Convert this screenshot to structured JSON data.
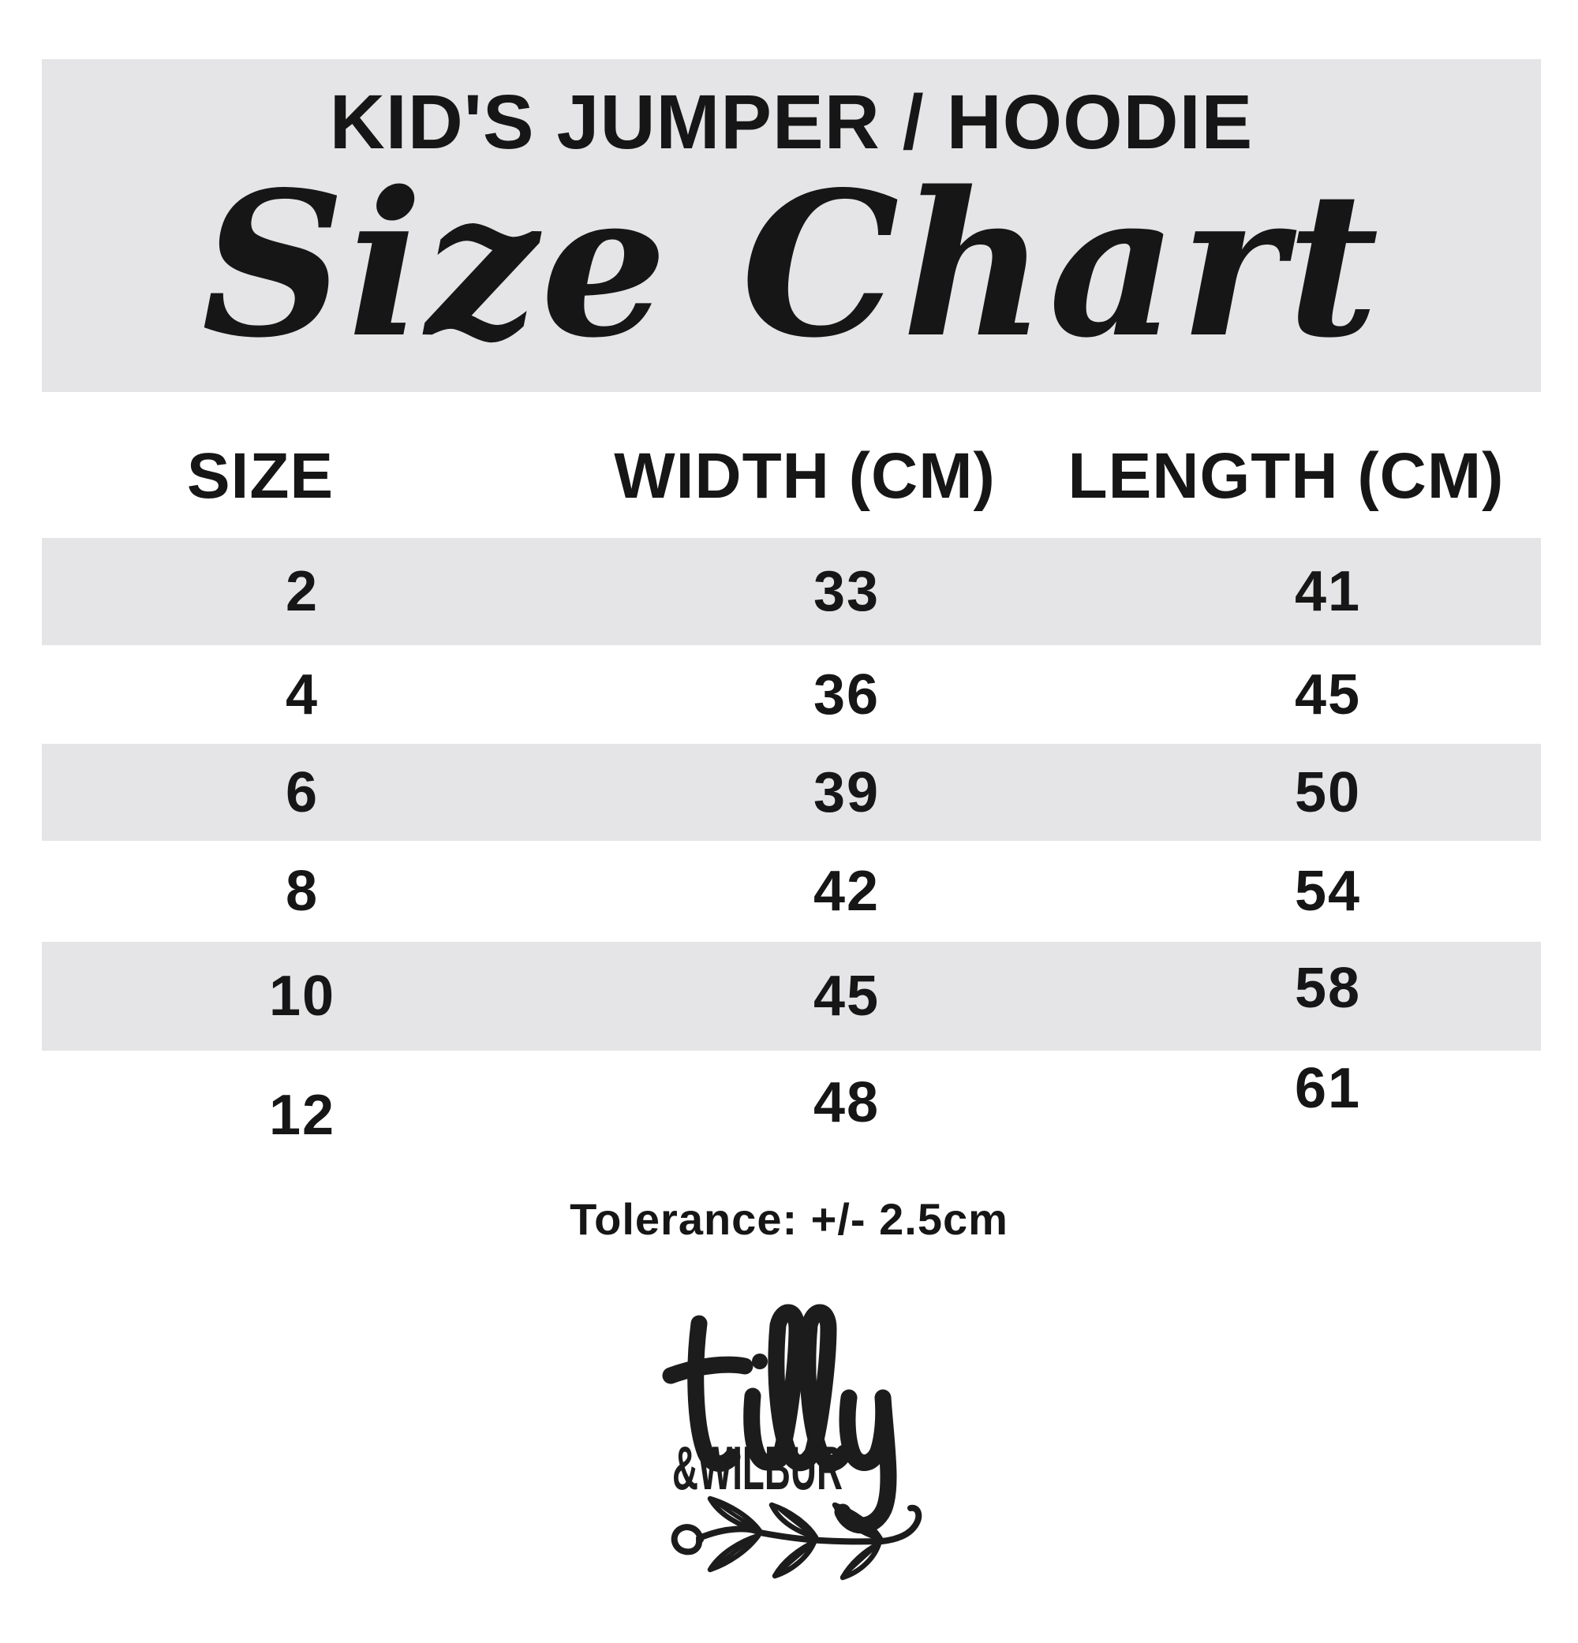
{
  "header": {
    "kicker": "KID'S JUMPER / HOODIE",
    "title": "Size Chart"
  },
  "table": {
    "columns": [
      "SIZE",
      "WIDTH (CM)",
      "LENGTH (CM)"
    ],
    "rows": [
      {
        "size": "2",
        "width": "33",
        "length": "41"
      },
      {
        "size": "4",
        "width": "36",
        "length": "45"
      },
      {
        "size": "6",
        "width": "39",
        "length": "50"
      },
      {
        "size": "8",
        "width": "42",
        "length": "54"
      },
      {
        "size": "10",
        "width": "45",
        "length": "58"
      },
      {
        "size": "12",
        "width": "48",
        "length": "61"
      }
    ]
  },
  "footer": {
    "tolerance": "Tolerance: +/- 2.5cm"
  },
  "logo": {
    "name_script": "tilly",
    "name_caps": "&WILBUR"
  },
  "colors": {
    "ink": "#161616",
    "band": "#e5e5e7",
    "background": "#ffffff"
  }
}
